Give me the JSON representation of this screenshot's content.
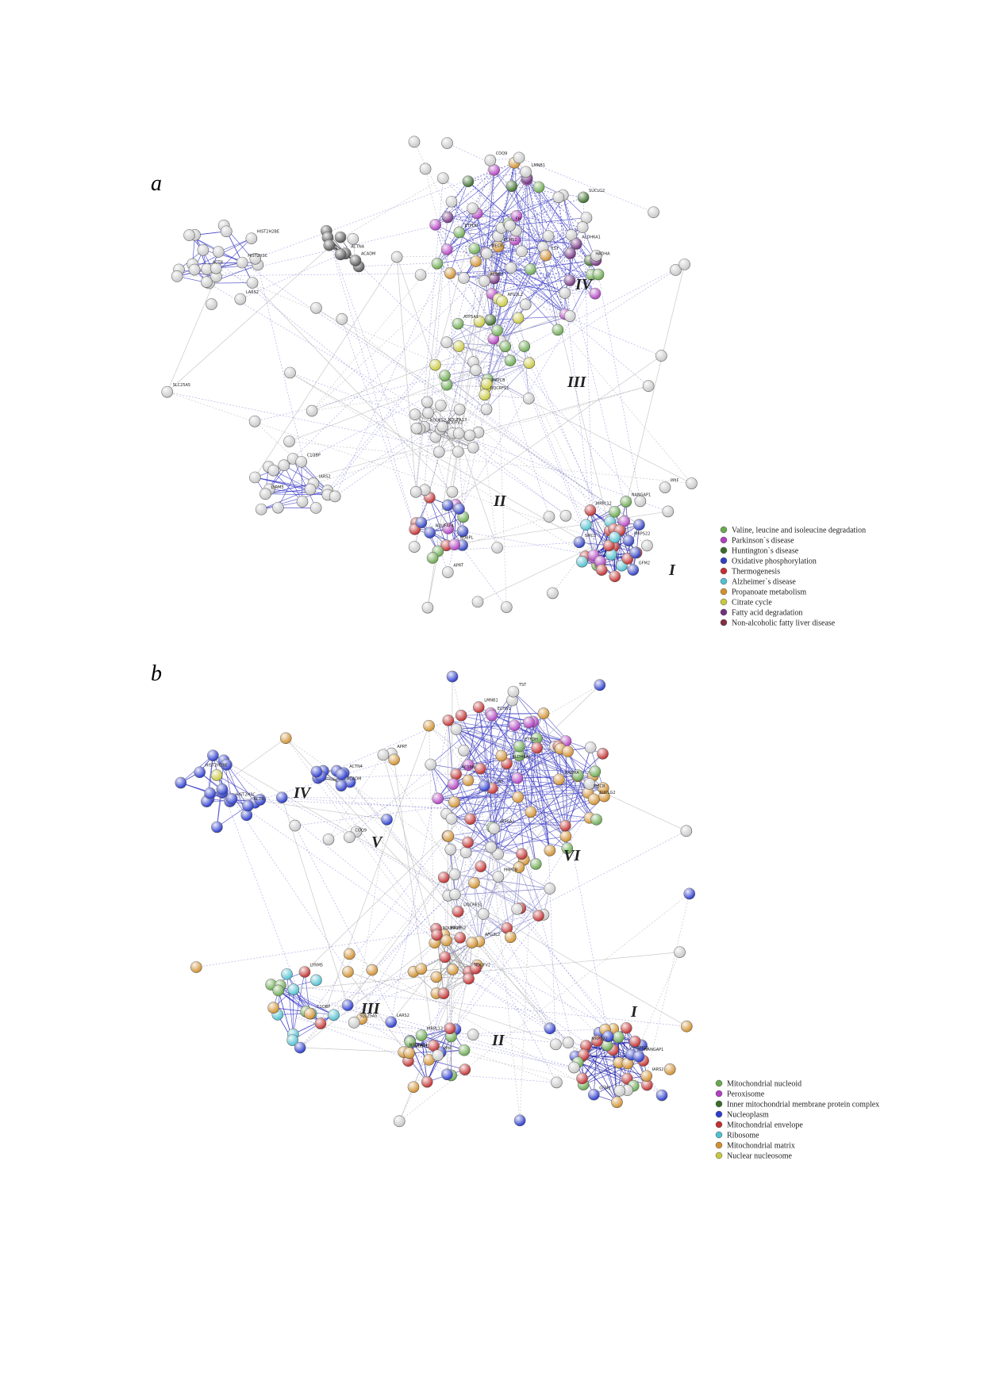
{
  "panels": [
    {
      "label": "a",
      "clusters": [
        "I",
        "II",
        "III",
        "IV"
      ],
      "legend": [
        {
          "label": "Valine, leucine and isoleucine degradation",
          "color": "#6aa84f"
        },
        {
          "label": "Parkinson`s disease",
          "color": "#b040c0"
        },
        {
          "label": "Huntington`s disease",
          "color": "#3a6b2a"
        },
        {
          "label": "Oxidative phosphorylation",
          "color": "#3040c0"
        },
        {
          "label": "Thermogenesis",
          "color": "#c03030"
        },
        {
          "label": "Alzheimer`s disease",
          "color": "#50c0d0"
        },
        {
          "label": "Propanoate metabolism",
          "color": "#d09030"
        },
        {
          "label": "Citrate cycle",
          "color": "#c8c840"
        },
        {
          "label": "Fatty acid degradation",
          "color": "#703080"
        },
        {
          "label": "Non-alcoholic fatty liver disease",
          "color": "#803040"
        }
      ],
      "nodes": [
        "HIST2H3C",
        "HIST2H2BE",
        "ACTB",
        "ACTN4",
        "ACADM",
        "ECHS1",
        "HADHA",
        "ALDH6A1",
        "ACSM5",
        "MECR",
        "SUCLG2",
        "FH",
        "TST",
        "ETFDH",
        "LMNB1",
        "PMPCB",
        "ATP5A1",
        "AFG3L2",
        "UQCRFS1",
        "NDUFV2",
        "NDUFS2",
        "NDUFA13",
        "NDUFAF4",
        "NUBPL",
        "MRPL12",
        "MRPS22",
        "GFM2",
        "SMC3",
        "NANGAP1",
        "IARS2",
        "C1QBP",
        "LYRM5",
        "PPIF",
        "SLC25A5",
        "APRT",
        "LARS2",
        "COQ9"
      ]
    },
    {
      "label": "b",
      "clusters": [
        "I",
        "II",
        "III",
        "IV",
        "V",
        "VI"
      ],
      "legend": [
        {
          "label": "Mitochondrial nucleoid",
          "color": "#6aa84f"
        },
        {
          "label": "Peroxisome",
          "color": "#b040c0"
        },
        {
          "label": "Inner mitochondrial membrane protein complex",
          "color": "#3a6b2a"
        },
        {
          "label": "Nucleoplasm",
          "color": "#2c3ccc"
        },
        {
          "label": "Mitochondrial envelope",
          "color": "#c03030"
        },
        {
          "label": "Ribosome",
          "color": "#50c0d0"
        },
        {
          "label": "Mitochondrial matrix",
          "color": "#d09030"
        },
        {
          "label": "Nuclear nucleosome",
          "color": "#c8c840"
        }
      ],
      "nodes": [
        "HIST2H3C",
        "HIST2H2BE",
        "ACTB",
        "ACTN4",
        "ACADM",
        "ECHS1",
        "HADHA",
        "ALDH6A1",
        "ACSM5",
        "MECR",
        "SUCLG2",
        "FH",
        "TST",
        "ETFDH",
        "LMNB1",
        "PMPCB",
        "ATP5A1",
        "AFG3L2",
        "UQCRFS1",
        "NDUFV2",
        "NDUFS2",
        "NDUFA13",
        "NDUFAF4",
        "NUBPL",
        "MRPL12",
        "MRPS22",
        "GFM2",
        "SMC3",
        "NANGAP1",
        "IARS2",
        "C1QBP",
        "LYRM5",
        "PPIF",
        "SLC25A5",
        "APRT",
        "LARS2",
        "COQ9"
      ]
    }
  ]
}
